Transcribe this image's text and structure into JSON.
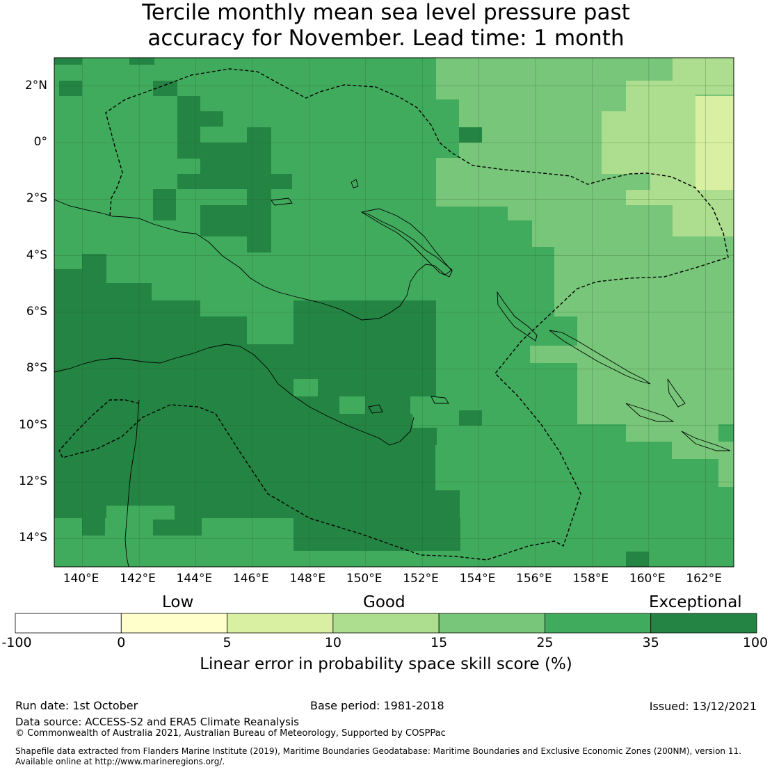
{
  "title": {
    "line1": "Tercile monthly mean sea level pressure past",
    "line2": "accuracy for November. Lead time: 1 month"
  },
  "map": {
    "lon_range": [
      139,
      163
    ],
    "lat_range": [
      -15,
      3
    ],
    "lon_ticks": [
      "140°E",
      "142°E",
      "144°E",
      "146°E",
      "148°E",
      "150°E",
      "152°E",
      "154°E",
      "156°E",
      "158°E",
      "160°E",
      "162°E"
    ],
    "lat_ticks": [
      "2°N",
      "0°",
      "2°S",
      "4°S",
      "6°S",
      "8°S",
      "10°S",
      "12°S",
      "14°S"
    ],
    "grid": true,
    "features": [
      "coastline",
      "dashed-eez-boundary",
      "skill-score-grid"
    ]
  },
  "colorbar": {
    "tiers": [
      "Low",
      "Good",
      "Exceptional"
    ],
    "ticks": [
      "-100",
      "0",
      "5",
      "10",
      "15",
      "25",
      "35",
      "100"
    ],
    "colors": [
      "#ffffff",
      "#ffffcc",
      "#d9f0a3",
      "#addd8e",
      "#78c679",
      "#41ab5d",
      "#238443"
    ],
    "label": "Linear error in probability space skill score (%)"
  },
  "footer": {
    "run_date": "Run date: 1st October",
    "base_period": "Base period: 1981-2018",
    "issued": "Issued: 13/12/2021",
    "data_source": "Data source: ACCESS-S2 and ERA5 Climate Reanalysis",
    "copyright": "© Commonwealth of Australia 2021, Australian Bureau of Meteorology, Supported by COSPPac",
    "shapefile_line1": "Shapefile data extracted from Flanders Marine Institute (2019), Maritime Boundaries Geodatabase: Maritime Boundaries and Exclusive Economic Zones (200NM), version 11.",
    "shapefile_line2": "Available online at http://www.marineregions.org/."
  }
}
